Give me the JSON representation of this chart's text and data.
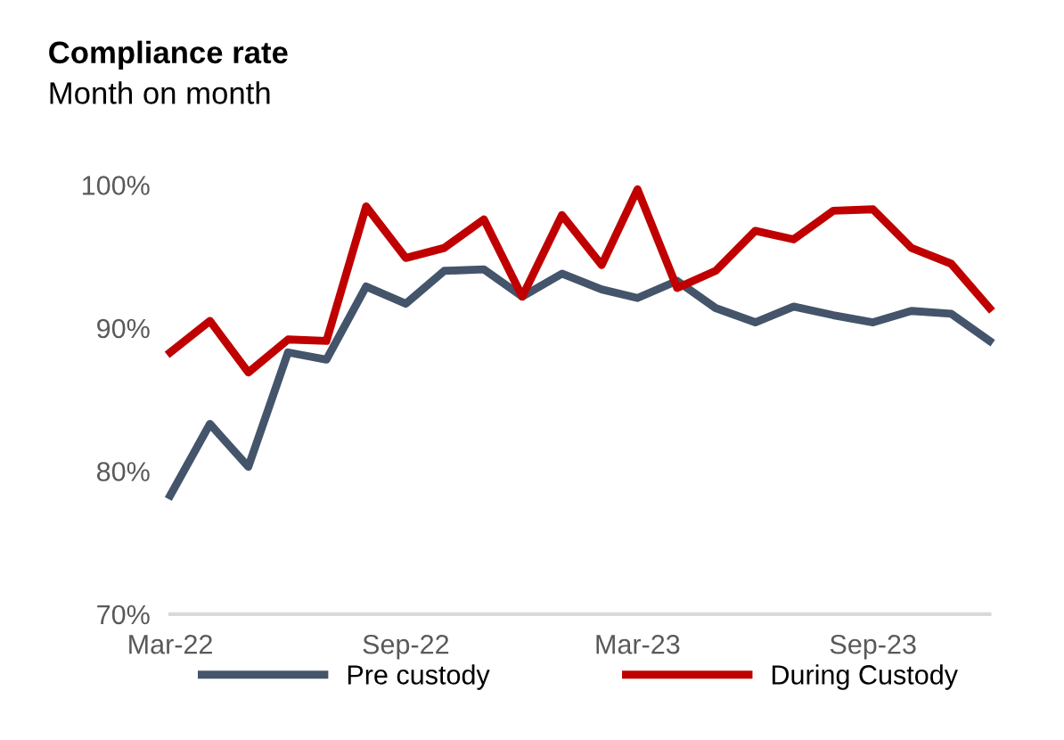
{
  "chart_data": {
    "type": "line",
    "title": "Compliance rate",
    "subtitle": "Month on month",
    "x": [
      "2022-03",
      "2022-04",
      "2022-05",
      "2022-06",
      "2022-07",
      "2022-08",
      "2022-09",
      "2022-10",
      "2022-11",
      "2022-12",
      "2023-01",
      "2023-02",
      "2023-03",
      "2023-04",
      "2023-05",
      "2023-06",
      "2023-07",
      "2023-08",
      "2023-09",
      "2023-10",
      "2023-11",
      "2023-12"
    ],
    "series": [
      {
        "name": "Pre custody",
        "color": "#44546a",
        "values": [
          78.3,
          83.3,
          80.3,
          88.3,
          87.8,
          92.9,
          91.7,
          94.0,
          94.1,
          92.2,
          93.8,
          92.7,
          92.1,
          93.3,
          91.4,
          90.4,
          91.5,
          90.9,
          90.4,
          91.2,
          91.0,
          89.1
        ]
      },
      {
        "name": "During Custody",
        "color": "#c00000",
        "values": [
          88.3,
          90.5,
          86.9,
          89.2,
          89.1,
          98.5,
          94.9,
          95.6,
          97.6,
          92.2,
          97.9,
          94.4,
          99.7,
          92.8,
          94.0,
          96.8,
          96.2,
          98.2,
          98.3,
          95.6,
          94.5,
          91.4
        ]
      }
    ],
    "xlim": [
      "2022-03",
      "2023-12"
    ],
    "xticks": [
      {
        "value": "2022-03",
        "label": "Mar-22"
      },
      {
        "value": "2022-09",
        "label": "Sep-22"
      },
      {
        "value": "2023-03",
        "label": "Mar-23"
      },
      {
        "value": "2023-09",
        "label": "Sep-23"
      }
    ],
    "ylim": [
      70,
      100
    ],
    "yticks": [
      {
        "value": 70,
        "label": "70%"
      },
      {
        "value": 80,
        "label": "80%"
      },
      {
        "value": 90,
        "label": "90%"
      },
      {
        "value": 100,
        "label": "100%"
      }
    ],
    "grid": false,
    "legend": "bottom",
    "marker": "none",
    "line_style": "solid"
  }
}
